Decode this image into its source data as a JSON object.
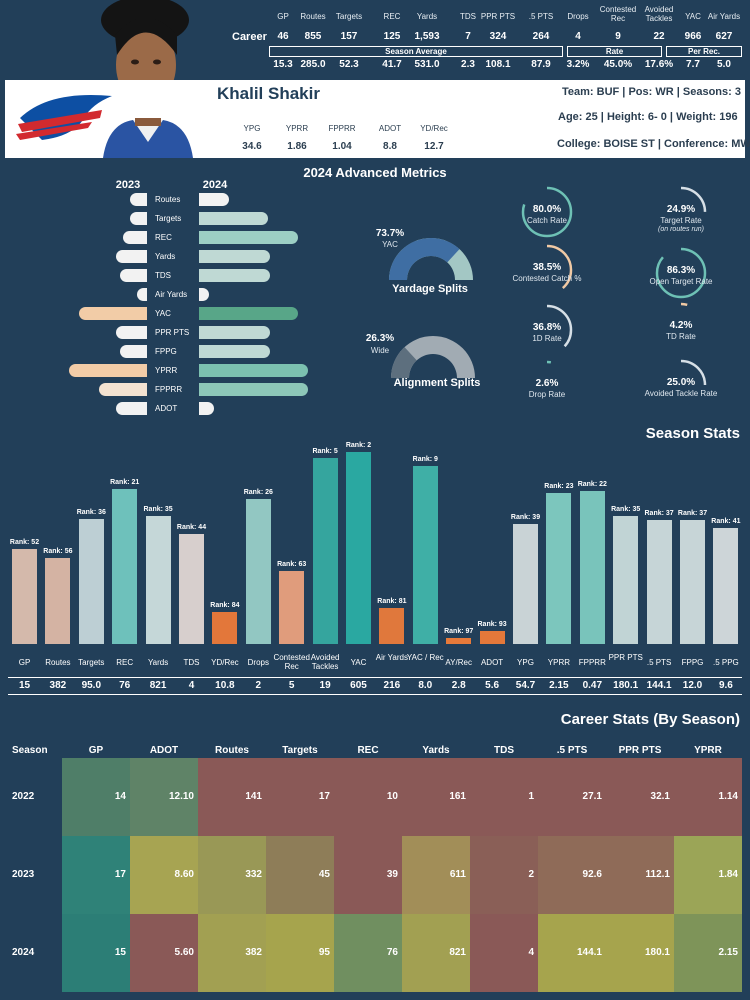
{
  "player": {
    "name": "Khalil Shakir",
    "team": "Team: BUF",
    "pos": "Pos: WR",
    "seasons": "Seasons: 3",
    "age": "Age: 25",
    "height": "Height: 6- 0",
    "weight": "Weight: 196",
    "college": "College: BOISE ST",
    "conference": "Conference: MWC"
  },
  "career": {
    "row_label": "Career",
    "headers": [
      "GP",
      "Routes",
      "Targets",
      "REC",
      "Yards",
      "TDS",
      "PPR PTS",
      ".5 PTS",
      "Drops",
      "Contested Rec",
      "Avoided Tackles",
      "YAC",
      "Air Yards"
    ],
    "values": [
      "46",
      "855",
      "157",
      "125",
      "1,593",
      "7",
      "324",
      "264",
      "4",
      "9",
      "22",
      "966",
      "627"
    ],
    "group_labels": [
      "Season Average",
      "Rate",
      "Per Rec."
    ],
    "averages": [
      "15.3",
      "285.0",
      "52.3",
      "41.7",
      "531.0",
      "2.3",
      "108.1",
      "87.9",
      "3.2%",
      "45.0%",
      "17.6%",
      "7.7",
      "5.0"
    ]
  },
  "profile_stats": {
    "headers": [
      "YPG",
      "YPRR",
      "FPPRR",
      "ADOT",
      "YD/Rec"
    ],
    "values": [
      "34.6",
      "1.86",
      "1.04",
      "8.8",
      "12.7"
    ]
  },
  "advanced": {
    "title": "2024 Advanced Metrics",
    "year_left": "2023",
    "year_right": "2024",
    "metrics": [
      {
        "label": "Routes",
        "v2023": 0.25,
        "v2024": 0.3
      },
      {
        "label": "Targets",
        "v2023": 0.25,
        "v2024": 0.7
      },
      {
        "label": "REC",
        "v2023": 0.35,
        "v2024": 1.0
      },
      {
        "label": "Yards",
        "v2023": 0.45,
        "v2024": 0.72
      },
      {
        "label": "TDS",
        "v2023": 0.4,
        "v2024": 0.72
      },
      {
        "label": "Air Yards",
        "v2023": 0.15,
        "v2024": 0.1
      },
      {
        "label": "YAC",
        "v2023": 1.0,
        "v2024": 1.0
      },
      {
        "label": "PPR PTS",
        "v2023": 0.45,
        "v2024": 0.72
      },
      {
        "label": "FPPG",
        "v2023": 0.4,
        "v2024": 0.72
      },
      {
        "label": "YPRR",
        "v2023": 1.15,
        "v2024": 1.1
      },
      {
        "label": "FPPRR",
        "v2023": 0.7,
        "v2024": 1.1
      },
      {
        "label": "ADOT",
        "v2023": 0.45,
        "v2024": 0.15
      }
    ],
    "yardage_split": {
      "pct": "73.7%",
      "label": "YAC",
      "title": "Yardage Splits",
      "value": 0.737
    },
    "alignment_split": {
      "pct": "26.3%",
      "label": "Wide",
      "title": "Alignment Splits",
      "value": 0.263
    },
    "rates": [
      {
        "pct": "80.0%",
        "label": "Catch Rate",
        "value": 0.8,
        "color": "#6ec1b5"
      },
      {
        "pct": "24.9%",
        "label": "Target Rate",
        "sub": "(on routes run)",
        "value": 0.249,
        "color": "#d6dfe6"
      },
      {
        "pct": "38.5%",
        "label": "Contested Catch %",
        "value": 0.385,
        "color": "#f0c9a4"
      },
      {
        "pct": "86.3%",
        "label": "Open Target Rate",
        "value": 0.863,
        "color": "#6ec1b5"
      },
      {
        "pct": "36.8%",
        "label": "1D Rate",
        "value": 0.368,
        "color": "#d6dfe6"
      },
      {
        "pct": "4.2%",
        "label": "TD Rate",
        "value": 0.042,
        "color": "#f0c9a4"
      },
      {
        "pct": "2.6%",
        "label": "Drop Rate",
        "value": 0.026,
        "color": "#6ec1b5"
      },
      {
        "pct": "25.0%",
        "label": "Avoided Tackle Rate",
        "value": 0.25,
        "color": "#d6dfe6"
      }
    ]
  },
  "season_stats": {
    "title": "Season Stats",
    "items": [
      {
        "label": "GP",
        "rank": "Rank: 52",
        "value": "15",
        "h": 95,
        "color": "#d4b9ab"
      },
      {
        "label": "Routes",
        "rank": "Rank: 56",
        "value": "382",
        "h": 86,
        "color": "#d4b3a3"
      },
      {
        "label": "Targets",
        "rank": "Rank: 36",
        "value": "95.0",
        "h": 125,
        "color": "#bdcfd4"
      },
      {
        "label": "REC",
        "rank": "Rank: 21",
        "value": "76",
        "h": 155,
        "color": "#6ec1bb"
      },
      {
        "label": "Yards",
        "rank": "Rank: 35",
        "value": "821",
        "h": 128,
        "color": "#c5d7d8"
      },
      {
        "label": "TDS",
        "rank": "Rank: 44",
        "value": "4",
        "h": 110,
        "color": "#d7cfcd"
      },
      {
        "label": "YD/Rec",
        "rank": "Rank: 84",
        "value": "10.8",
        "h": 32,
        "color": "#e3773a"
      },
      {
        "label": "Drops",
        "rank": "Rank: 26",
        "value": "2",
        "h": 145,
        "color": "#92c7c2"
      },
      {
        "label": "Contested Rec",
        "rank": "Rank: 63",
        "value": "5",
        "h": 73,
        "color": "#e09c7c"
      },
      {
        "label": "Avoided Tackles",
        "rank": "Rank: 5",
        "value": "19",
        "h": 186,
        "color": "#35a59e"
      },
      {
        "label": "YAC",
        "rank": "Rank: 2",
        "value": "605",
        "h": 192,
        "color": "#2aa8a1"
      },
      {
        "label": "Air Yards",
        "rank": "Rank: 81",
        "value": "216",
        "h": 36,
        "color": "#e0783c"
      },
      {
        "label": "YAC / Rec",
        "rank": "Rank: 9",
        "value": "8.0",
        "h": 178,
        "color": "#3fafa6"
      },
      {
        "label": "AY/Rec",
        "rank": "Rank: 97",
        "value": "2.8",
        "h": 6,
        "color": "#e77a3a"
      },
      {
        "label": "ADOT",
        "rank": "Rank: 93",
        "value": "5.6",
        "h": 13,
        "color": "#e4783a"
      },
      {
        "label": "YPG",
        "rank": "Rank: 39",
        "value": "54.7",
        "h": 120,
        "color": "#c9d3d6"
      },
      {
        "label": "YPRR",
        "rank": "Rank: 23",
        "value": "2.15",
        "h": 151,
        "color": "#7cc6bd"
      },
      {
        "label": "FPPRR",
        "rank": "Rank: 22",
        "value": "0.47",
        "h": 153,
        "color": "#79c4bb"
      },
      {
        "label": "PPR PTS",
        "rank": "Rank: 35",
        "value": "180.1",
        "h": 128,
        "color": "#c1d4d5"
      },
      {
        "label": ".5 PTS",
        "rank": "Rank: 37",
        "value": "144.1",
        "h": 124,
        "color": "#c6d5d7"
      },
      {
        "label": "FPPG",
        "rank": "Rank: 37",
        "value": "12.0",
        "h": 124,
        "color": "#c7d5d7"
      },
      {
        "label": ".5 PPG",
        "rank": "Rank: 41",
        "value": "9.6",
        "h": 116,
        "color": "#cdd5d8"
      }
    ]
  },
  "career_by_season": {
    "title": "Career Stats (By Season)",
    "headers": [
      "Season",
      "GP",
      "ADOT",
      "Routes",
      "Targets",
      "REC",
      "Yards",
      "TDS",
      ".5 PTS",
      "PPR PTS",
      "YPRR"
    ],
    "rows": [
      {
        "season": "2022",
        "cells": [
          "14",
          "12.10",
          "141",
          "17",
          "10",
          "161",
          "1",
          "27.1",
          "32.1",
          "1.14"
        ]
      },
      {
        "season": "2023",
        "cells": [
          "17",
          "8.60",
          "332",
          "45",
          "39",
          "611",
          "2",
          "92.6",
          "112.1",
          "1.84"
        ]
      },
      {
        "season": "2024",
        "cells": [
          "15",
          "5.60",
          "382",
          "95",
          "76",
          "821",
          "4",
          "144.1",
          "180.1",
          "2.15"
        ]
      }
    ],
    "colors": [
      [
        "#4f7e68",
        "#5f8367",
        "#8a5957",
        "#8a5957",
        "#8a5957",
        "#8a5957",
        "#8a5957",
        "#8a5957",
        "#8a5957",
        "#8a5957"
      ],
      [
        "#2f8278",
        "#a7a452",
        "#999856",
        "#8e7d58",
        "#8a5957",
        "#a28e58",
        "#8a5f57",
        "#8f6b58",
        "#8f6b58",
        "#9ba557"
      ],
      [
        "#2c7e76",
        "#8a5957",
        "#a2a052",
        "#a6a44d",
        "#708f60",
        "#a2a052",
        "#8a5957",
        "#a6a44d",
        "#a6a44d",
        "#7e9459"
      ]
    ]
  }
}
